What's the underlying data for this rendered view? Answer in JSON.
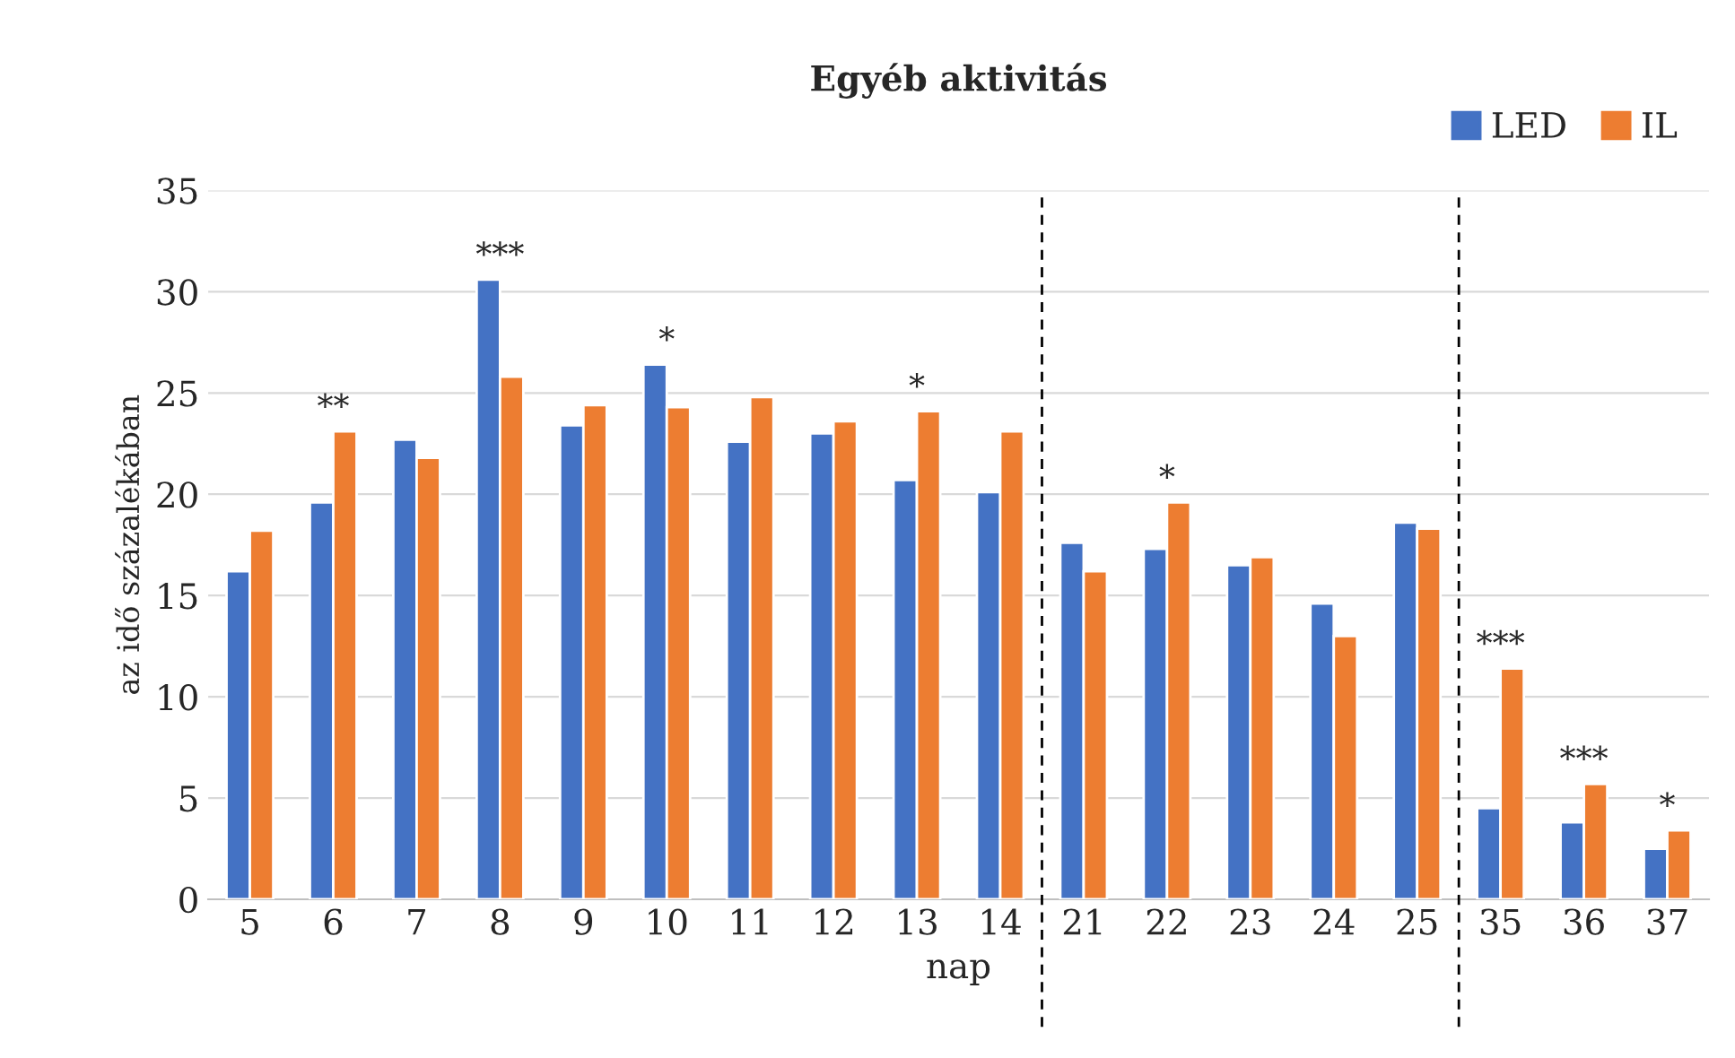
{
  "chart_data": {
    "type": "bar",
    "title": "Egyéb aktivitás",
    "xlabel": "nap",
    "ylabel": "az idő százalékában",
    "categories": [
      "5",
      "6",
      "7",
      "8",
      "9",
      "10",
      "11",
      "12",
      "13",
      "14",
      "21",
      "22",
      "23",
      "24",
      "25",
      "35",
      "36",
      "37"
    ],
    "series": [
      {
        "name": "LED",
        "color": "#4472c4",
        "values": [
          16.2,
          19.6,
          22.7,
          30.6,
          23.4,
          26.4,
          22.6,
          23.0,
          20.7,
          20.1,
          17.6,
          17.3,
          16.5,
          14.6,
          18.6,
          4.5,
          3.8,
          2.5
        ]
      },
      {
        "name": "IL",
        "color": "#ed7d31",
        "values": [
          18.2,
          23.1,
          21.8,
          25.8,
          24.4,
          24.3,
          24.8,
          23.6,
          24.1,
          23.1,
          16.2,
          19.6,
          16.9,
          13.0,
          18.3,
          11.4,
          5.7,
          3.4
        ]
      }
    ],
    "ylim": [
      0,
      35
    ],
    "yticks": [
      0,
      5,
      10,
      15,
      20,
      25,
      30,
      35
    ],
    "grid": "y",
    "legend": "top right",
    "annotations": [
      {
        "text": "**",
        "x": "6",
        "y": 23.1
      },
      {
        "text": "***",
        "x": "8",
        "y": 30.6
      },
      {
        "text": "*",
        "x": "10",
        "y": 26.4
      },
      {
        "text": "*",
        "x": "13",
        "y": 24.1
      },
      {
        "text": "*",
        "x": "22",
        "y": 19.6
      },
      {
        "text": "***",
        "x": "35",
        "y": 11.4
      },
      {
        "text": "***",
        "x": "36",
        "y": 5.7
      },
      {
        "text": "*",
        "x": "37",
        "y": 3.4
      }
    ]
  }
}
